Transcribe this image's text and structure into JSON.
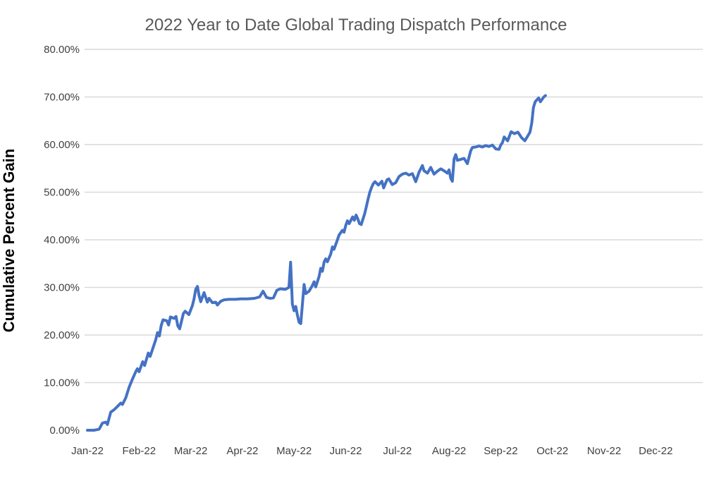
{
  "title": "2022 Year to Date Global Trading Dispatch Performance",
  "colors": {
    "title_text": "#595959",
    "axis_tick_text": "#404040",
    "y_axis_title_text": "#000000",
    "gridline": "#D9D9D9",
    "series_line": "#4472C4",
    "background": "#FFFFFF"
  },
  "chart_data": {
    "type": "line",
    "title": "2022 Year to Date Global Trading Dispatch Performance",
    "xlabel": "",
    "ylabel": "Cumulative Percent Gain",
    "ylim": [
      0,
      80
    ],
    "y_tick_step": 10,
    "y_tick_labels": [
      "0.00%",
      "10.00%",
      "20.00%",
      "30.00%",
      "40.00%",
      "50.00%",
      "60.00%",
      "70.00%",
      "80.00%"
    ],
    "x_tick_labels": [
      "Jan-22",
      "Feb-22",
      "Mar-22",
      "Apr-22",
      "May-22",
      "Jun-22",
      "Jul-22",
      "Aug-22",
      "Sep-22",
      "Oct-22",
      "Nov-22",
      "Dec-22"
    ],
    "grid": "horizontal-only, no gridline at 0%",
    "legend": "none",
    "line_color": "#4472C4",
    "line_width": 4,
    "series": [
      {
        "name": "Cumulative Percent Gain",
        "points": [
          [
            "2022-01-01",
            0.0
          ],
          [
            "2022-01-05",
            0.0
          ],
          [
            "2022-01-08",
            0.2
          ],
          [
            "2022-01-10",
            1.5
          ],
          [
            "2022-01-12",
            1.7
          ],
          [
            "2022-01-13",
            1.2
          ],
          [
            "2022-01-15",
            3.8
          ],
          [
            "2022-01-17",
            4.3
          ],
          [
            "2022-01-19",
            5.0
          ],
          [
            "2022-01-21",
            5.7
          ],
          [
            "2022-01-22",
            5.4
          ],
          [
            "2022-01-24",
            6.8
          ],
          [
            "2022-01-26",
            9.0
          ],
          [
            "2022-01-28",
            10.7
          ],
          [
            "2022-01-30",
            12.3
          ],
          [
            "2022-01-31",
            12.9
          ],
          [
            "2022-02-01",
            12.3
          ],
          [
            "2022-02-03",
            14.4
          ],
          [
            "2022-02-04",
            13.6
          ],
          [
            "2022-02-06",
            16.2
          ],
          [
            "2022-02-07",
            15.5
          ],
          [
            "2022-02-09",
            17.8
          ],
          [
            "2022-02-10",
            19.0
          ],
          [
            "2022-02-11",
            20.5
          ],
          [
            "2022-02-12",
            19.8
          ],
          [
            "2022-02-13",
            22.0
          ],
          [
            "2022-02-14",
            23.2
          ],
          [
            "2022-02-16",
            23.0
          ],
          [
            "2022-02-17",
            22.1
          ],
          [
            "2022-02-18",
            23.8
          ],
          [
            "2022-02-20",
            23.5
          ],
          [
            "2022-02-21",
            23.9
          ],
          [
            "2022-02-22",
            21.9
          ],
          [
            "2022-02-23",
            21.3
          ],
          [
            "2022-02-25",
            24.5
          ],
          [
            "2022-02-26",
            25.0
          ],
          [
            "2022-02-28",
            24.3
          ],
          [
            "2022-03-02",
            26.2
          ],
          [
            "2022-03-03",
            27.6
          ],
          [
            "2022-03-04",
            29.6
          ],
          [
            "2022-03-05",
            30.2
          ],
          [
            "2022-03-06",
            28.3
          ],
          [
            "2022-03-07",
            27.0
          ],
          [
            "2022-03-09",
            28.9
          ],
          [
            "2022-03-11",
            26.9
          ],
          [
            "2022-03-12",
            27.7
          ],
          [
            "2022-03-14",
            26.8
          ],
          [
            "2022-03-16",
            26.9
          ],
          [
            "2022-03-17",
            26.3
          ],
          [
            "2022-03-19",
            27.1
          ],
          [
            "2022-03-21",
            27.4
          ],
          [
            "2022-03-24",
            27.5
          ],
          [
            "2022-03-28",
            27.5
          ],
          [
            "2022-03-31",
            27.6
          ],
          [
            "2022-04-04",
            27.6
          ],
          [
            "2022-04-08",
            27.7
          ],
          [
            "2022-04-11",
            28.0
          ],
          [
            "2022-04-13",
            29.2
          ],
          [
            "2022-04-15",
            27.9
          ],
          [
            "2022-04-17",
            27.7
          ],
          [
            "2022-04-19",
            27.8
          ],
          [
            "2022-04-21",
            29.4
          ],
          [
            "2022-04-23",
            29.7
          ],
          [
            "2022-04-26",
            29.6
          ],
          [
            "2022-04-28",
            30.0
          ],
          [
            "2022-04-29",
            35.3
          ],
          [
            "2022-04-30",
            26.5
          ],
          [
            "2022-05-01",
            25.1
          ],
          [
            "2022-05-02",
            26.0
          ],
          [
            "2022-05-03",
            24.2
          ],
          [
            "2022-05-04",
            22.7
          ],
          [
            "2022-05-05",
            22.4
          ],
          [
            "2022-05-06",
            26.4
          ],
          [
            "2022-05-07",
            30.6
          ],
          [
            "2022-05-08",
            28.7
          ],
          [
            "2022-05-10",
            29.2
          ],
          [
            "2022-05-12",
            30.4
          ],
          [
            "2022-05-13",
            31.2
          ],
          [
            "2022-05-14",
            30.1
          ],
          [
            "2022-05-16",
            32.3
          ],
          [
            "2022-05-17",
            34.0
          ],
          [
            "2022-05-18",
            33.4
          ],
          [
            "2022-05-19",
            35.3
          ],
          [
            "2022-05-20",
            36.0
          ],
          [
            "2022-05-21",
            35.4
          ],
          [
            "2022-05-23",
            37.0
          ],
          [
            "2022-05-24",
            38.5
          ],
          [
            "2022-05-25",
            38.0
          ],
          [
            "2022-05-27",
            40.0
          ],
          [
            "2022-05-28",
            41.0
          ],
          [
            "2022-05-30",
            42.0
          ],
          [
            "2022-05-31",
            41.6
          ],
          [
            "2022-06-01",
            43.0
          ],
          [
            "2022-06-02",
            44.0
          ],
          [
            "2022-06-03",
            43.4
          ],
          [
            "2022-06-05",
            44.8
          ],
          [
            "2022-06-06",
            44.1
          ],
          [
            "2022-06-07",
            45.2
          ],
          [
            "2022-06-08",
            44.4
          ],
          [
            "2022-06-09",
            43.4
          ],
          [
            "2022-06-10",
            43.2
          ],
          [
            "2022-06-12",
            45.5
          ],
          [
            "2022-06-13",
            47.0
          ],
          [
            "2022-06-14",
            48.6
          ],
          [
            "2022-06-15",
            50.0
          ],
          [
            "2022-06-16",
            51.0
          ],
          [
            "2022-06-17",
            51.8
          ],
          [
            "2022-06-18",
            52.2
          ],
          [
            "2022-06-20",
            51.5
          ],
          [
            "2022-06-21",
            51.9
          ],
          [
            "2022-06-22",
            52.3
          ],
          [
            "2022-06-23",
            50.9
          ],
          [
            "2022-06-25",
            52.6
          ],
          [
            "2022-06-26",
            52.8
          ],
          [
            "2022-06-28",
            51.6
          ],
          [
            "2022-06-30",
            52.0
          ],
          [
            "2022-07-02",
            53.3
          ],
          [
            "2022-07-04",
            53.8
          ],
          [
            "2022-07-06",
            54.0
          ],
          [
            "2022-07-08",
            53.6
          ],
          [
            "2022-07-10",
            53.9
          ],
          [
            "2022-07-12",
            52.2
          ],
          [
            "2022-07-14",
            54.2
          ],
          [
            "2022-07-16",
            55.6
          ],
          [
            "2022-07-17",
            54.5
          ],
          [
            "2022-07-19",
            54.0
          ],
          [
            "2022-07-21",
            55.2
          ],
          [
            "2022-07-23",
            53.8
          ],
          [
            "2022-07-25",
            54.4
          ],
          [
            "2022-07-27",
            54.9
          ],
          [
            "2022-07-29",
            54.5
          ],
          [
            "2022-07-31",
            54.0
          ],
          [
            "2022-08-01",
            54.7
          ],
          [
            "2022-08-02",
            52.9
          ],
          [
            "2022-08-03",
            52.3
          ],
          [
            "2022-08-04",
            57.0
          ],
          [
            "2022-08-05",
            57.9
          ],
          [
            "2022-08-06",
            56.7
          ],
          [
            "2022-08-08",
            56.9
          ],
          [
            "2022-08-10",
            57.1
          ],
          [
            "2022-08-12",
            56.0
          ],
          [
            "2022-08-14",
            58.7
          ],
          [
            "2022-08-15",
            59.4
          ],
          [
            "2022-08-17",
            59.5
          ],
          [
            "2022-08-19",
            59.7
          ],
          [
            "2022-08-21",
            59.5
          ],
          [
            "2022-08-23",
            59.8
          ],
          [
            "2022-08-25",
            59.6
          ],
          [
            "2022-08-27",
            59.9
          ],
          [
            "2022-08-29",
            59.1
          ],
          [
            "2022-08-31",
            59.0
          ],
          [
            "2022-09-01",
            59.9
          ],
          [
            "2022-09-02",
            60.4
          ],
          [
            "2022-09-03",
            61.6
          ],
          [
            "2022-09-05",
            60.8
          ],
          [
            "2022-09-07",
            62.7
          ],
          [
            "2022-09-09",
            62.3
          ],
          [
            "2022-09-11",
            62.6
          ],
          [
            "2022-09-13",
            61.5
          ],
          [
            "2022-09-15",
            60.8
          ],
          [
            "2022-09-17",
            62.0
          ],
          [
            "2022-09-18",
            62.6
          ],
          [
            "2022-09-19",
            64.5
          ],
          [
            "2022-09-20",
            67.8
          ],
          [
            "2022-09-21",
            69.0
          ],
          [
            "2022-09-22",
            69.4
          ],
          [
            "2022-09-23",
            69.8
          ],
          [
            "2022-09-24",
            69.0
          ],
          [
            "2022-09-26",
            70.0
          ],
          [
            "2022-09-27",
            70.3
          ]
        ]
      }
    ]
  }
}
